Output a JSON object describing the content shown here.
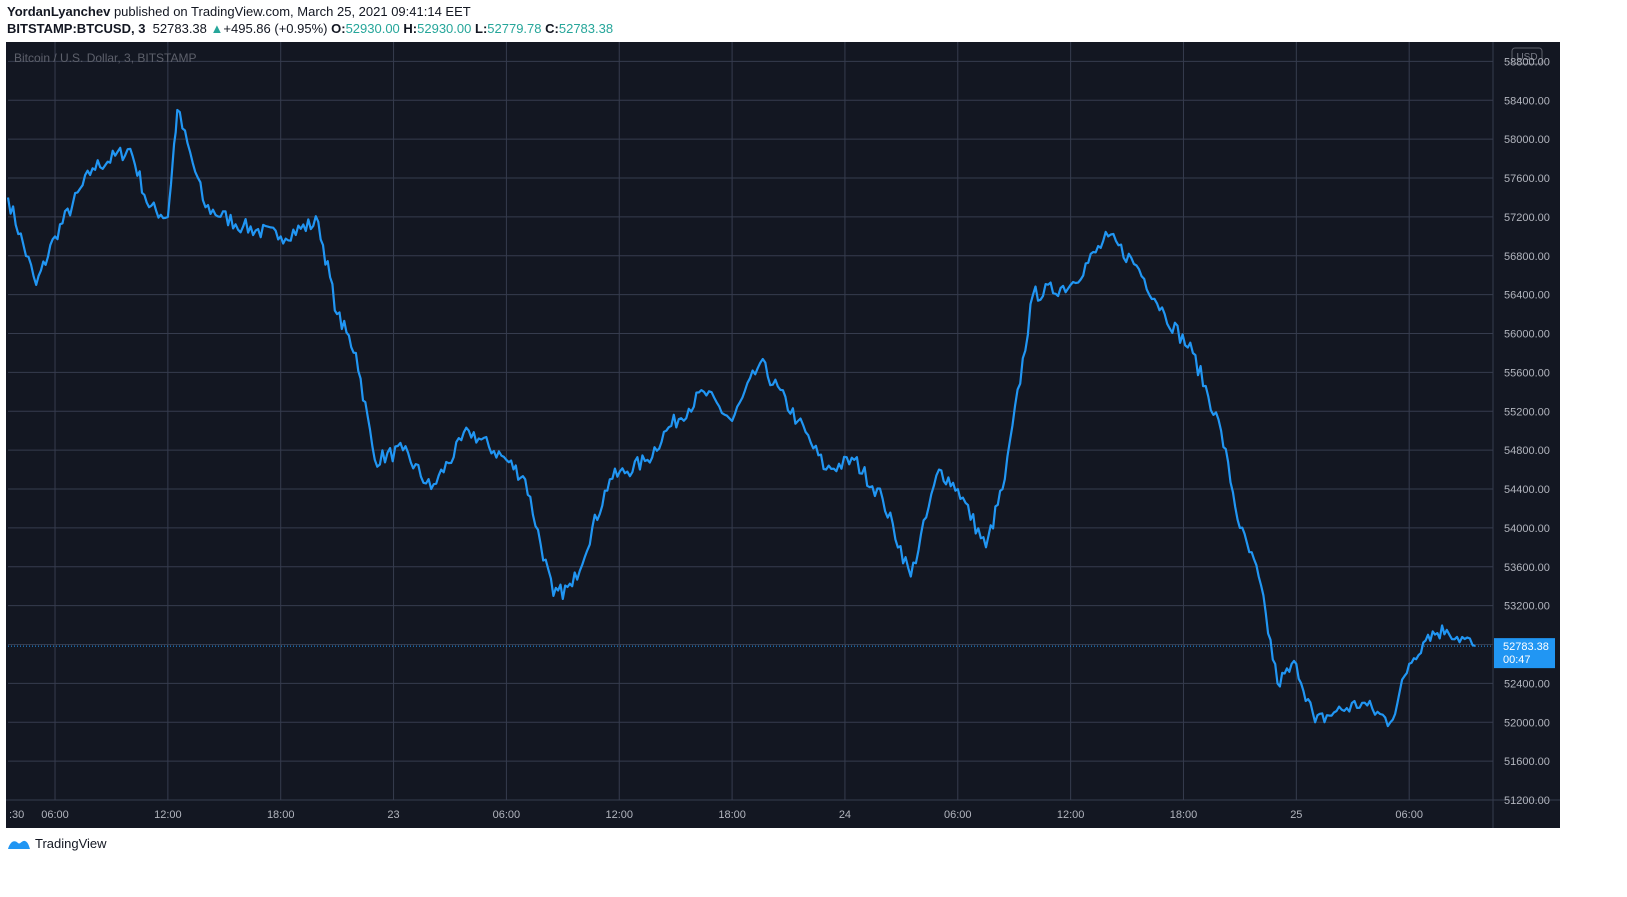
{
  "header": {
    "author": "YordanLyanchev",
    "published_text": "published on TradingView.com, March 25, 2021 09:41:14 EET",
    "symbol": "BITSTAMP:BTCUSD, 3",
    "last": "52783.38",
    "change_arrow": "▲",
    "change": "+495.86 (+0.95%)",
    "o_label": "O:",
    "o_value": "52930.00",
    "h_label": "H:",
    "h_value": "52930.00",
    "l_label": "L:",
    "l_value": "52779.78",
    "c_label": "C:",
    "c_value": "52783.38"
  },
  "footer": {
    "brand": "TradingView",
    "logo_icon": "tradingview-logo-icon"
  },
  "colors": {
    "background": "#131722",
    "grid": "#363c4e",
    "line": "#2196f3",
    "text": "#b2b5be",
    "up": "#26a69a"
  },
  "chart_data": {
    "type": "line",
    "title": "Bitcoin / U.S. Dollar, 3, BITSTAMP",
    "currency_badge": "USD",
    "xlabel": "",
    "ylabel": "",
    "ylim": [
      51200,
      59000
    ],
    "y_ticks": [
      "58800.00",
      "58400.00",
      "58000.00",
      "57600.00",
      "57200.00",
      "56800.00",
      "56400.00",
      "56000.00",
      "55600.00",
      "55200.00",
      "54800.00",
      "54400.00",
      "54000.00",
      "53600.00",
      "53200.00",
      "52800.00",
      "52400.00",
      "52000.00",
      "51600.00",
      "51200.00"
    ],
    "x_ticks": [
      ":30",
      "06:00",
      "12:00",
      "18:00",
      "23",
      "06:00",
      "12:00",
      "18:00",
      "24",
      "06:00",
      "12:00",
      "18:00",
      "25",
      "06:00"
    ],
    "current_price_label": "52783.38",
    "countdown_label": "00:47",
    "grid": true,
    "series": [
      {
        "x": [
          "22 03:30",
          "22 05:00",
          "22 06:00",
          "22 08:00",
          "22 10:00",
          "22 11:00",
          "22 12:00",
          "22 12:30",
          "22 14:00",
          "22 16:00",
          "22 18:00",
          "22 20:00",
          "22 21:00",
          "22 22:00",
          "22 23:00",
          "23 00:30",
          "23 02:00",
          "23 04:00",
          "23 06:00",
          "23 07:00",
          "23 08:30",
          "23 09:30",
          "23 11:30",
          "23 13:30",
          "23 14:30",
          "23 16:30",
          "23 18:00",
          "23 19:30",
          "23 21:30",
          "23 23:00",
          "24 00:30",
          "24 02:00",
          "24 03:30",
          "24 05:00",
          "24 06:00",
          "24 07:30",
          "24 08:30",
          "24 10:00",
          "24 12:00",
          "24 14:00",
          "24 15:30",
          "24 17:00",
          "24 18:30",
          "24 20:00",
          "24 21:00",
          "24 22:00",
          "24 23:00",
          "25 00:00",
          "25 01:00",
          "25 02:00",
          "25 03:30",
          "25 05:00",
          "25 06:00",
          "25 07:00",
          "25 08:00",
          "25 09:30"
        ],
        "y": [
          57400,
          56500,
          57000,
          57700,
          57900,
          57300,
          57200,
          58300,
          57300,
          57100,
          57000,
          57150,
          56200,
          55800,
          54700,
          54800,
          54400,
          55000,
          54700,
          54500,
          53300,
          53400,
          54500,
          54700,
          55000,
          55400,
          55100,
          55700,
          55100,
          54600,
          54700,
          54300,
          53500,
          54600,
          54400,
          53800,
          54500,
          56400,
          56500,
          57000,
          56700,
          56200,
          55800,
          55000,
          54000,
          53500,
          52400,
          52600,
          52000,
          52100,
          52200,
          52000,
          52600,
          52900,
          52950,
          52783
        ]
      }
    ]
  }
}
